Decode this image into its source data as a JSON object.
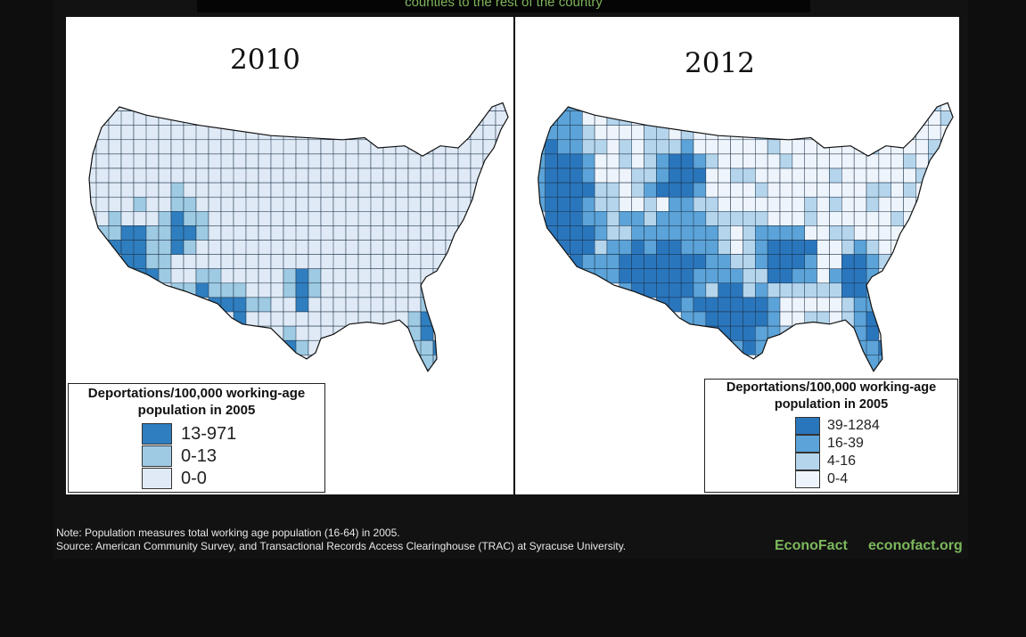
{
  "top_caption": "counties to the rest of the country",
  "panels": [
    {
      "id": "left",
      "year": "2010",
      "legend": {
        "title": "Deportations/100,000 working-age population in 2005",
        "items": [
          {
            "label": "13-971",
            "color": "#2f7ebf"
          },
          {
            "label": "0-13",
            "color": "#9ecae3"
          },
          {
            "label": "0-0",
            "color": "#dfeaf6"
          }
        ]
      }
    },
    {
      "id": "right",
      "year": "2012",
      "legend": {
        "title": "Deportations/100,000 working-age population in 2005",
        "items": [
          {
            "label": "39-1284",
            "color": "#2a76bd"
          },
          {
            "label": "16-39",
            "color": "#5ba3d8"
          },
          {
            "label": "4-16",
            "color": "#b5d5ec"
          },
          {
            "label": "0-4",
            "color": "#eef4fb"
          }
        ]
      }
    }
  ],
  "note": "Note: Population measures total working age population (16-64) in 2005.",
  "source": "Source:  American Community Survey, and Transactional Records Access Clearinghouse (TRAC) at Syracuse University.",
  "brand_name": "EconoFact",
  "brand_url": "econofact.org"
}
